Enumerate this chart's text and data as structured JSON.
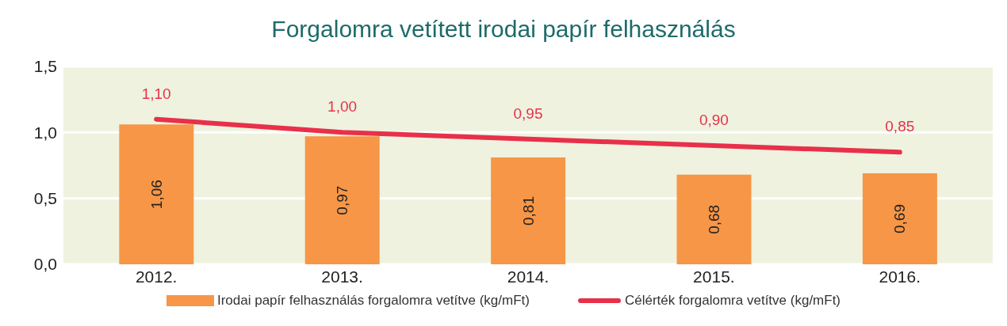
{
  "chart_data": {
    "type": "bar",
    "title": "Forgalomra vetített irodai papír felhasználás",
    "categories": [
      "2012.",
      "2013.",
      "2014.",
      "2015.",
      "2016."
    ],
    "series": [
      {
        "name": "Irodai papír felhasználás forgalomra vetítve (kg/mFt)",
        "color": "#f79646",
        "values": [
          1.06,
          0.97,
          0.81,
          0.68,
          0.69
        ],
        "value_labels": [
          "1,06",
          "0,97",
          "0,81",
          "0,68",
          "0,69"
        ]
      },
      {
        "type": "line",
        "name": "Célérték forgalomra vetítve (kg/mFt)",
        "color": "#e8304a",
        "values": [
          1.1,
          1.0,
          0.95,
          0.9,
          0.85
        ],
        "value_labels": [
          "1,10",
          "1,00",
          "0,95",
          "0,90",
          "0,85"
        ]
      }
    ],
    "ylim": [
      0,
      1.5
    ],
    "yticks": [
      {
        "value": 0,
        "label": "0,0"
      },
      {
        "value": 0.5,
        "label": "0,5"
      },
      {
        "value": 1,
        "label": "1,0"
      },
      {
        "value": 1.5,
        "label": "1,5"
      }
    ],
    "grid": "y",
    "legend": "bottom",
    "marker": "none"
  }
}
